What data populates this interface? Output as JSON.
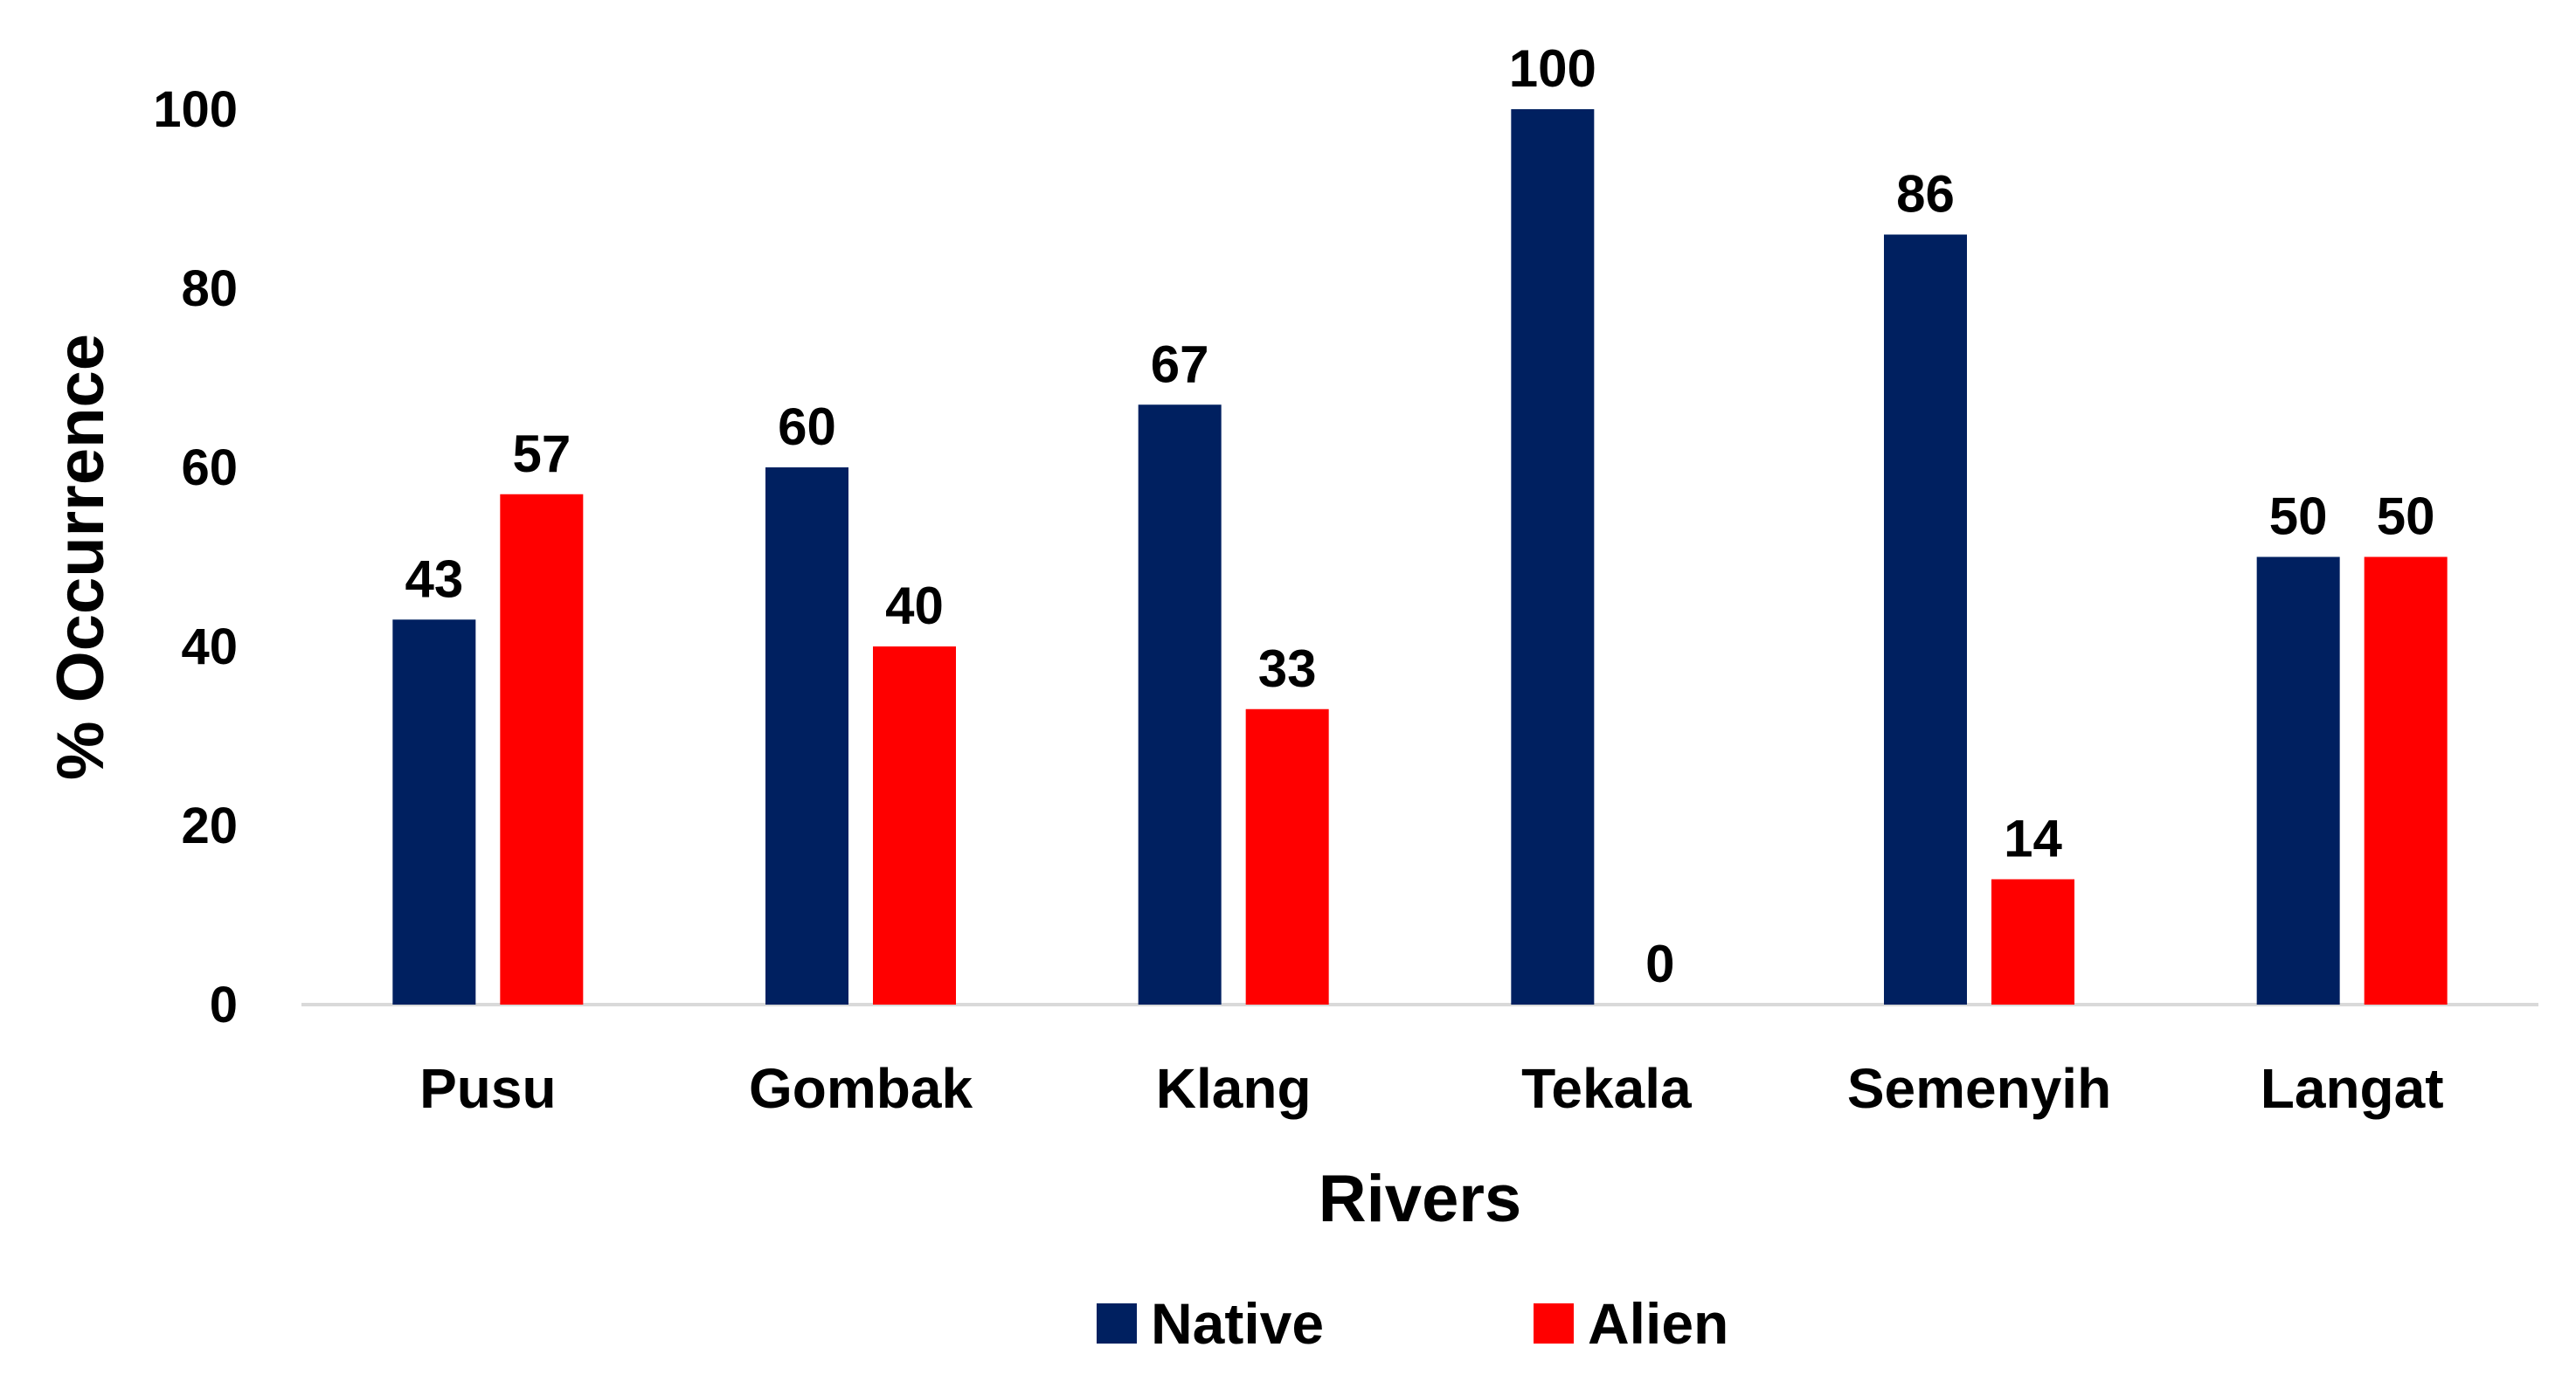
{
  "chart_data": {
    "type": "bar",
    "title": "",
    "xlabel": "Rivers",
    "ylabel": "% Occurrence",
    "categories": [
      "Pusu",
      "Gombak",
      "Klang",
      "Tekala",
      "Semenyih",
      "Langat"
    ],
    "series": [
      {
        "name": "Native",
        "color": "#002060",
        "values": [
          43,
          60,
          67,
          100,
          86,
          50
        ]
      },
      {
        "name": "Alien",
        "color": "#ff0000",
        "values": [
          57,
          40,
          33,
          0,
          14,
          50
        ]
      }
    ],
    "ylim": [
      0,
      100
    ],
    "yticks": [
      0,
      20,
      40,
      60,
      80,
      100
    ],
    "grid": false,
    "legend": "bottom-center",
    "data_labels": true
  }
}
